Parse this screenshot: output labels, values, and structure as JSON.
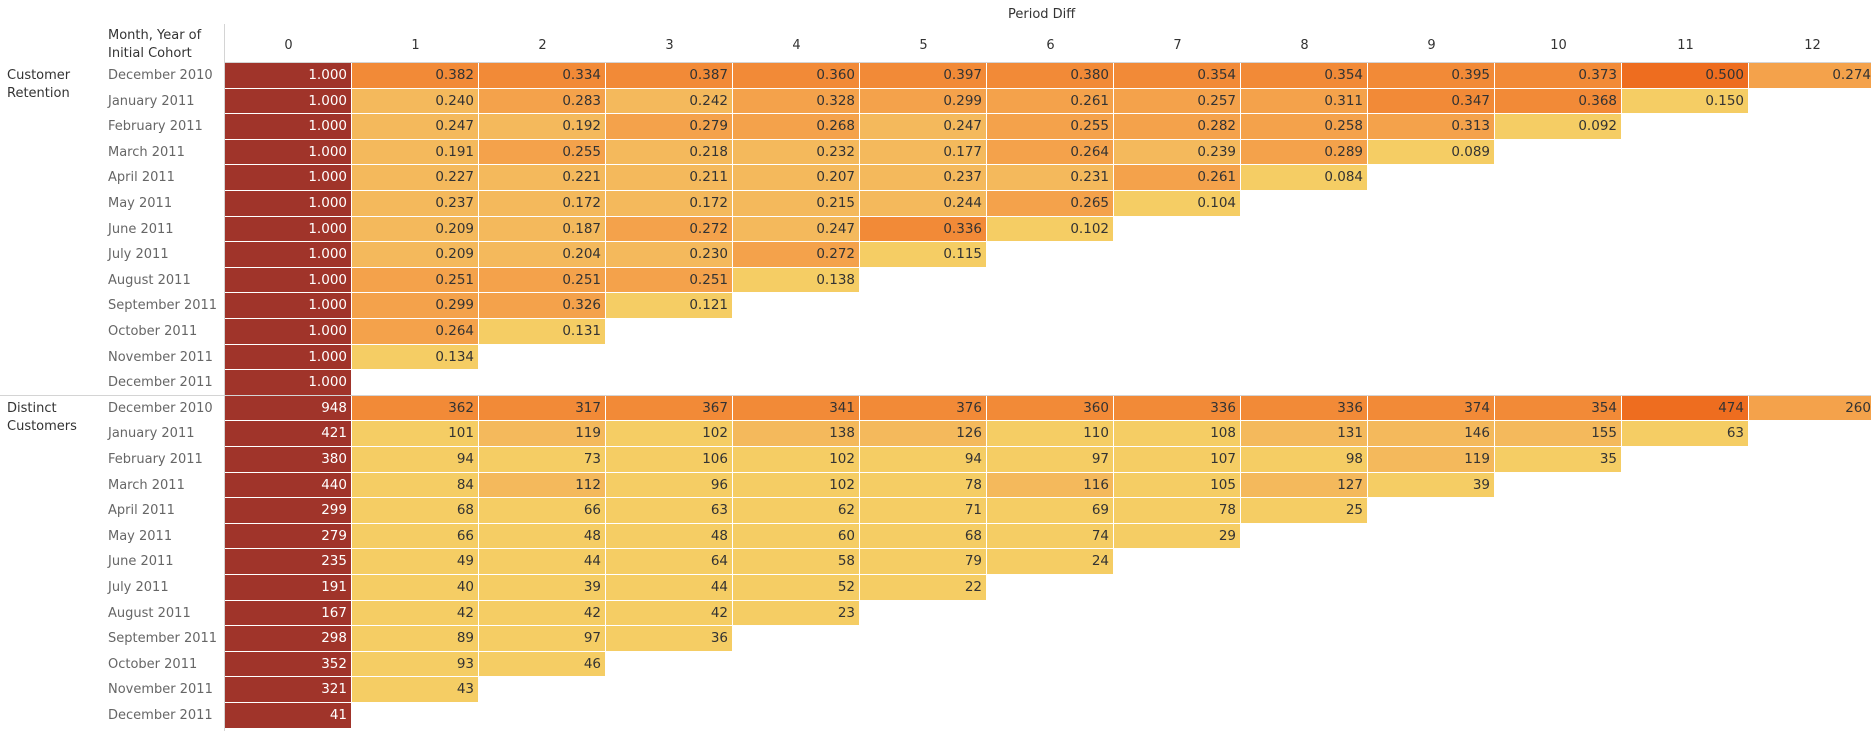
{
  "header": {
    "column_title": "Period Diff",
    "row_title_line1": "Month, Year of",
    "row_title_line2": "Initial Cohort"
  },
  "colors": {
    "period0": "#a0342a",
    "scale": [
      "#f5cd64",
      "#f4b95c",
      "#f4a24b",
      "#f28a37",
      "#ee6d1f"
    ]
  },
  "chart_data": {
    "type": "table",
    "columns": [
      "0",
      "1",
      "2",
      "3",
      "4",
      "5",
      "6",
      "7",
      "8",
      "9",
      "10",
      "11",
      "12"
    ],
    "rows": [
      "December 2010",
      "January 2011",
      "February 2011",
      "March 2011",
      "April 2011",
      "May 2011",
      "June 2011",
      "July 2011",
      "August 2011",
      "September 2011",
      "October 2011",
      "November 2011",
      "December 2011"
    ],
    "measures": [
      {
        "name_line1": "Customer",
        "name_line2": "Retention",
        "values": [
          [
            "1.000",
            "0.382",
            "0.334",
            "0.387",
            "0.360",
            "0.397",
            "0.380",
            "0.354",
            "0.354",
            "0.395",
            "0.373",
            "0.500",
            "0.274"
          ],
          [
            "1.000",
            "0.240",
            "0.283",
            "0.242",
            "0.328",
            "0.299",
            "0.261",
            "0.257",
            "0.311",
            "0.347",
            "0.368",
            "0.150"
          ],
          [
            "1.000",
            "0.247",
            "0.192",
            "0.279",
            "0.268",
            "0.247",
            "0.255",
            "0.282",
            "0.258",
            "0.313",
            "0.092"
          ],
          [
            "1.000",
            "0.191",
            "0.255",
            "0.218",
            "0.232",
            "0.177",
            "0.264",
            "0.239",
            "0.289",
            "0.089"
          ],
          [
            "1.000",
            "0.227",
            "0.221",
            "0.211",
            "0.207",
            "0.237",
            "0.231",
            "0.261",
            "0.084"
          ],
          [
            "1.000",
            "0.237",
            "0.172",
            "0.172",
            "0.215",
            "0.244",
            "0.265",
            "0.104"
          ],
          [
            "1.000",
            "0.209",
            "0.187",
            "0.272",
            "0.247",
            "0.336",
            "0.102"
          ],
          [
            "1.000",
            "0.209",
            "0.204",
            "0.230",
            "0.272",
            "0.115"
          ],
          [
            "1.000",
            "0.251",
            "0.251",
            "0.251",
            "0.138"
          ],
          [
            "1.000",
            "0.299",
            "0.326",
            "0.121"
          ],
          [
            "1.000",
            "0.264",
            "0.131"
          ],
          [
            "1.000",
            "0.134"
          ],
          [
            "1.000"
          ]
        ]
      },
      {
        "name_line1": "Distinct",
        "name_line2": "Customers",
        "values": [
          [
            "948",
            "362",
            "317",
            "367",
            "341",
            "376",
            "360",
            "336",
            "336",
            "374",
            "354",
            "474",
            "260"
          ],
          [
            "421",
            "101",
            "119",
            "102",
            "138",
            "126",
            "110",
            "108",
            "131",
            "146",
            "155",
            "63"
          ],
          [
            "380",
            "94",
            "73",
            "106",
            "102",
            "94",
            "97",
            "107",
            "98",
            "119",
            "35"
          ],
          [
            "440",
            "84",
            "112",
            "96",
            "102",
            "78",
            "116",
            "105",
            "127",
            "39"
          ],
          [
            "299",
            "68",
            "66",
            "63",
            "62",
            "71",
            "69",
            "78",
            "25"
          ],
          [
            "279",
            "66",
            "48",
            "48",
            "60",
            "68",
            "74",
            "29"
          ],
          [
            "235",
            "49",
            "44",
            "64",
            "58",
            "79",
            "24"
          ],
          [
            "191",
            "40",
            "39",
            "44",
            "52",
            "22"
          ],
          [
            "167",
            "42",
            "42",
            "42",
            "23"
          ],
          [
            "298",
            "89",
            "97",
            "36"
          ],
          [
            "352",
            "93",
            "46"
          ],
          [
            "321",
            "43"
          ],
          [
            "41"
          ]
        ]
      }
    ]
  }
}
